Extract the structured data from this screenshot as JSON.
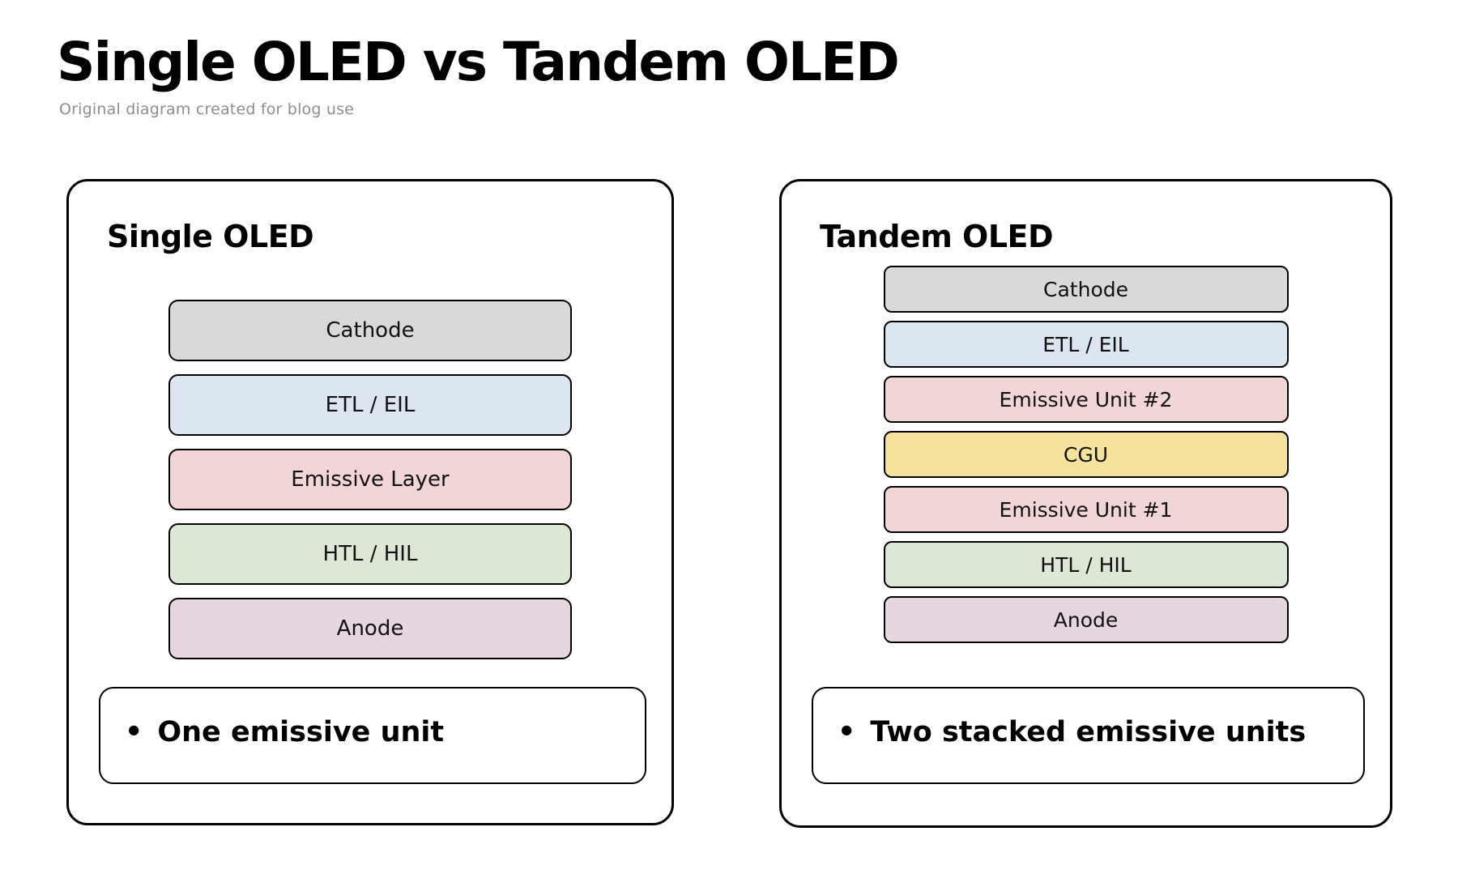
{
  "header": {
    "title": "Single OLED vs Tandem OLED",
    "subtitle": "Original diagram created for blog use"
  },
  "colors": {
    "background": "#ffffff",
    "outline": "#000000",
    "cathode_gray": "#d9d9d9",
    "etl_blue": "#dbe6f1",
    "emissive_pink": "#f2d5d5",
    "cgu_yellow": "#f5e29b",
    "htl_green": "#dde7d6",
    "anode_mauve": "#e5d6df",
    "subtitle_gray": "#8e8e8e"
  },
  "panels": [
    {
      "title": "Single OLED",
      "layers": [
        {
          "label": "Cathode",
          "color": "#d9d9d9"
        },
        {
          "label": "ETL / EIL",
          "color": "#dbe6f1"
        },
        {
          "label": "Emissive Layer",
          "color": "#f2d5d5"
        },
        {
          "label": "HTL / HIL",
          "color": "#dde7d6"
        },
        {
          "label": "Anode",
          "color": "#e5d6df"
        }
      ],
      "note": {
        "bullet": "•",
        "text": "One emissive unit"
      }
    },
    {
      "title": "Tandem OLED",
      "layers": [
        {
          "label": "Cathode",
          "color": "#d9d9d9"
        },
        {
          "label": "ETL / EIL",
          "color": "#dbe6f1"
        },
        {
          "label": "Emissive Unit #2",
          "color": "#f2d5d5"
        },
        {
          "label": "CGU",
          "color": "#f5e29b"
        },
        {
          "label": "Emissive Unit #1",
          "color": "#f2d5d5"
        },
        {
          "label": "HTL / HIL",
          "color": "#dde7d6"
        },
        {
          "label": "Anode",
          "color": "#e5d6df"
        }
      ],
      "note": {
        "bullet": "•",
        "text": "Two stacked emissive units"
      }
    }
  ]
}
